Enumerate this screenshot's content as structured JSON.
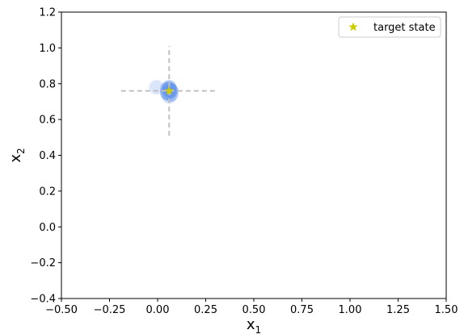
{
  "chart_data": {
    "type": "scatter",
    "title": "",
    "xlabel": "x",
    "xlabel_sub": "1",
    "ylabel": "x",
    "ylabel_sub": "2",
    "xlim": [
      -0.5,
      1.5
    ],
    "ylim": [
      -0.4,
      1.2
    ],
    "xticks": [
      -0.5,
      -0.25,
      0.0,
      0.25,
      0.5,
      0.75,
      1.0,
      1.25,
      1.5
    ],
    "xtick_labels": [
      "−0.50",
      "−0.25",
      "0.00",
      "0.25",
      "0.50",
      "0.75",
      "1.00",
      "1.25",
      "1.50"
    ],
    "yticks": [
      -0.4,
      -0.2,
      0.0,
      0.2,
      0.4,
      0.6,
      0.8,
      1.0,
      1.2
    ],
    "ytick_labels": [
      "−0.4",
      "−0.2",
      "0.0",
      "0.2",
      "0.4",
      "0.6",
      "0.8",
      "1.0",
      "1.2"
    ],
    "grid": false,
    "legend": {
      "placement": "top-right",
      "entries": [
        "target state"
      ]
    },
    "target_state": {
      "x": 0.06,
      "y": 0.76,
      "color": "#cccc00",
      "marker": "star"
    },
    "crosshair": {
      "color": "#c0c0c0",
      "horizontal": {
        "y": 0.76,
        "x_from": -0.19,
        "x_to": 0.31
      },
      "vertical": {
        "x": 0.06,
        "y_from": 0.51,
        "y_to": 1.01
      }
    },
    "state_samples": {
      "color": "#6495ed",
      "points": [
        {
          "x": 0.06,
          "y": 0.77,
          "alpha": 0.55
        },
        {
          "x": 0.07,
          "y": 0.76,
          "alpha": 0.5
        },
        {
          "x": 0.05,
          "y": 0.75,
          "alpha": 0.45
        },
        {
          "x": 0.06,
          "y": 0.78,
          "alpha": 0.45
        },
        {
          "x": 0.07,
          "y": 0.74,
          "alpha": 0.4
        },
        {
          "x": 0.05,
          "y": 0.77,
          "alpha": 0.4
        },
        {
          "x": 0.065,
          "y": 0.765,
          "alpha": 0.5
        },
        {
          "x": 0.055,
          "y": 0.745,
          "alpha": 0.35
        },
        {
          "x": 0.06,
          "y": 0.73,
          "alpha": 0.3
        },
        {
          "x": -0.01,
          "y": 0.78,
          "alpha": 0.15
        },
        {
          "x": 0.0,
          "y": 0.78,
          "alpha": 0.1
        }
      ]
    }
  }
}
